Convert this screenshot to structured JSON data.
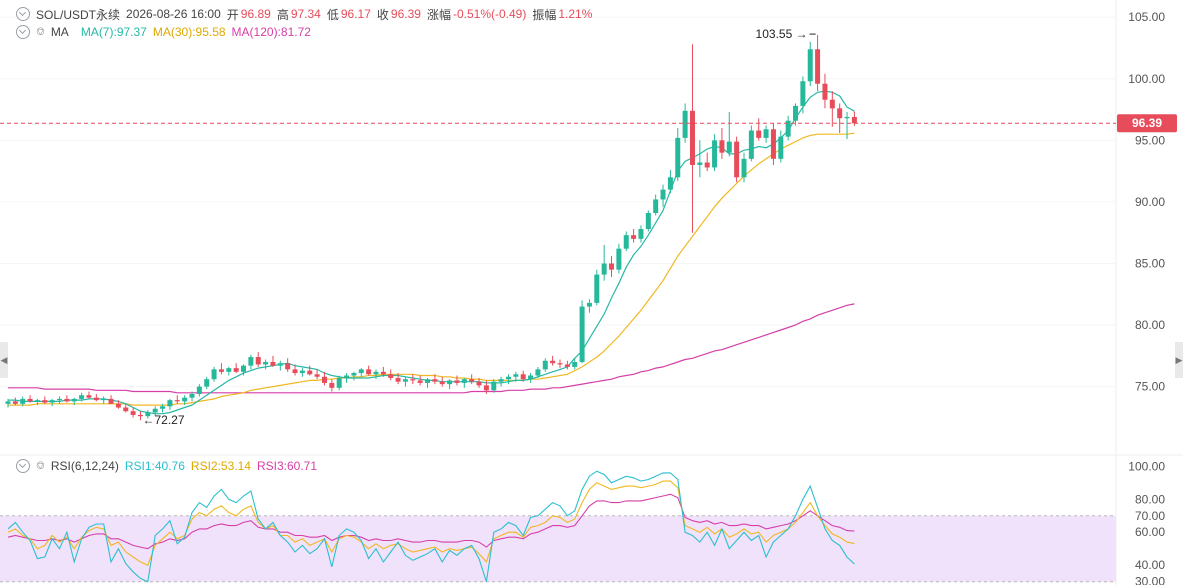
{
  "header": {
    "symbol": "SOL/USDT永续",
    "datetime": "2026-08-26 16:00",
    "open_label": "开",
    "open": "96.89",
    "high_label": "高",
    "high": "97.34",
    "low_label": "低",
    "low": "96.17",
    "close_label": "收",
    "close": "96.39",
    "change_label": "涨幅",
    "change": "-0.51%(-0.49)",
    "amp_label": "振幅",
    "amp": "1.21%"
  },
  "ma_legend": {
    "name": "MA",
    "ma7": "MA(7):97.37",
    "ma30": "MA(30):95.58",
    "ma120": "MA(120):81.72"
  },
  "rsi_legend": {
    "name": "RSI(6,12,24)",
    "rsi1": "RSI1:40.76",
    "rsi2": "RSI2:53.14",
    "rsi3": "RSI3:60.71"
  },
  "colors": {
    "up": "#26b89a",
    "down": "#e74c5a",
    "ma7": "#26b8a6",
    "ma30": "#f0b820",
    "ma120": "#d63fa8",
    "rsi1": "#2bbfcf",
    "rsi2": "#f0b820",
    "rsi3": "#d63fa8",
    "rsi_band": "#f0e2fb",
    "price_tag": "#e74c5a"
  },
  "chart_data": {
    "type": "candlestick",
    "price_axis": {
      "ticks": [
        "105.00",
        "100.00",
        "95.00",
        "90.00",
        "85.00",
        "80.00",
        "75.00"
      ],
      "range": [
        71.8,
        106.4
      ]
    },
    "rsi_axis": {
      "ticks": [
        "100.00",
        "80.00",
        "70.00",
        "60.00",
        "40.00",
        "30.00"
      ],
      "range": [
        28,
        102
      ],
      "band": [
        30,
        70
      ]
    },
    "current_price": "96.39",
    "max_label": "103.55",
    "min_label": "72.27",
    "candles": [
      [
        73.6,
        74.0,
        73.3,
        73.8
      ],
      [
        73.8,
        74.1,
        73.5,
        73.6
      ],
      [
        73.6,
        74.2,
        73.4,
        74.0
      ],
      [
        74.0,
        74.3,
        73.7,
        73.8
      ],
      [
        73.8,
        74.0,
        73.5,
        73.9
      ],
      [
        73.9,
        74.2,
        73.6,
        73.7
      ],
      [
        73.7,
        74.0,
        73.4,
        73.9
      ],
      [
        73.9,
        74.2,
        73.6,
        74.0
      ],
      [
        74.0,
        74.3,
        73.7,
        73.8
      ],
      [
        73.8,
        74.1,
        73.5,
        74.0
      ],
      [
        74.0,
        74.5,
        73.8,
        74.3
      ],
      [
        74.3,
        74.6,
        74.0,
        74.1
      ],
      [
        74.1,
        74.4,
        73.8,
        73.9
      ],
      [
        73.9,
        74.2,
        73.6,
        74.0
      ],
      [
        74.0,
        74.3,
        73.7,
        73.6
      ],
      [
        73.6,
        73.9,
        73.2,
        73.3
      ],
      [
        73.3,
        73.6,
        72.9,
        73.0
      ],
      [
        73.0,
        73.3,
        72.5,
        72.7
      ],
      [
        72.7,
        73.0,
        72.27,
        72.6
      ],
      [
        72.6,
        73.1,
        72.4,
        72.9
      ],
      [
        72.9,
        73.4,
        72.6,
        73.2
      ],
      [
        73.2,
        73.6,
        72.9,
        73.4
      ],
      [
        73.4,
        74.0,
        73.1,
        73.9
      ],
      [
        73.9,
        74.3,
        73.6,
        73.8
      ],
      [
        73.8,
        74.3,
        73.5,
        74.1
      ],
      [
        74.1,
        74.6,
        73.8,
        74.4
      ],
      [
        74.4,
        75.2,
        74.2,
        75.0
      ],
      [
        75.0,
        75.8,
        74.8,
        75.6
      ],
      [
        75.6,
        76.6,
        75.4,
        76.4
      ],
      [
        76.4,
        76.9,
        76.0,
        76.2
      ],
      [
        76.2,
        76.6,
        75.9,
        76.5
      ],
      [
        76.5,
        76.9,
        76.1,
        76.2
      ],
      [
        76.2,
        76.8,
        75.9,
        76.7
      ],
      [
        76.7,
        77.6,
        76.4,
        77.4
      ],
      [
        77.4,
        77.8,
        76.6,
        76.8
      ],
      [
        76.8,
        77.2,
        76.4,
        77.0
      ],
      [
        77.0,
        77.5,
        76.6,
        76.7
      ],
      [
        76.7,
        77.1,
        76.3,
        76.9
      ],
      [
        76.9,
        77.3,
        76.2,
        76.4
      ],
      [
        76.4,
        76.8,
        75.9,
        76.1
      ],
      [
        76.1,
        76.5,
        75.8,
        76.3
      ],
      [
        76.3,
        76.7,
        75.9,
        76.0
      ],
      [
        76.0,
        76.4,
        75.6,
        75.8
      ],
      [
        75.8,
        76.2,
        75.1,
        75.3
      ],
      [
        75.3,
        75.6,
        74.6,
        74.9
      ],
      [
        74.9,
        75.9,
        74.7,
        75.7
      ],
      [
        75.7,
        76.1,
        75.3,
        75.9
      ],
      [
        75.9,
        76.2,
        75.5,
        76.1
      ],
      [
        76.1,
        76.5,
        75.8,
        76.4
      ],
      [
        76.4,
        76.7,
        75.9,
        76.0
      ],
      [
        76.0,
        76.4,
        75.6,
        76.2
      ],
      [
        76.2,
        76.6,
        75.8,
        76.0
      ],
      [
        76.0,
        76.4,
        75.5,
        75.7
      ],
      [
        75.7,
        76.1,
        75.2,
        75.4
      ],
      [
        75.4,
        75.8,
        75.0,
        75.6
      ],
      [
        75.6,
        76.0,
        75.2,
        75.5
      ],
      [
        75.5,
        75.9,
        75.1,
        75.3
      ],
      [
        75.3,
        75.7,
        74.9,
        75.6
      ],
      [
        75.6,
        76.0,
        75.2,
        75.4
      ],
      [
        75.4,
        75.8,
        75.0,
        75.2
      ],
      [
        75.2,
        75.6,
        74.8,
        75.5
      ],
      [
        75.5,
        75.9,
        75.1,
        75.3
      ],
      [
        75.3,
        75.7,
        74.9,
        75.6
      ],
      [
        75.6,
        76.0,
        75.2,
        75.4
      ],
      [
        75.4,
        75.7,
        74.9,
        75.1
      ],
      [
        75.1,
        75.5,
        74.4,
        74.7
      ],
      [
        74.7,
        75.6,
        74.5,
        75.4
      ],
      [
        75.4,
        75.8,
        75.0,
        75.6
      ],
      [
        75.6,
        76.0,
        75.2,
        75.8
      ],
      [
        75.8,
        76.2,
        75.4,
        76.0
      ],
      [
        76.0,
        76.3,
        75.4,
        75.6
      ],
      [
        75.6,
        76.1,
        75.3,
        75.9
      ],
      [
        75.9,
        76.6,
        75.7,
        76.4
      ],
      [
        76.4,
        77.3,
        76.2,
        77.1
      ],
      [
        77.1,
        77.5,
        76.7,
        76.9
      ],
      [
        76.9,
        77.2,
        76.5,
        76.8
      ],
      [
        76.8,
        77.1,
        76.4,
        76.6
      ],
      [
        76.6,
        77.3,
        76.4,
        77.0
      ],
      [
        77.0,
        82.0,
        76.9,
        81.5
      ],
      [
        81.5,
        82.1,
        81.0,
        81.8
      ],
      [
        81.8,
        84.5,
        81.6,
        84.1
      ],
      [
        84.1,
        86.5,
        83.6,
        85.0
      ],
      [
        85.0,
        85.6,
        83.9,
        84.5
      ],
      [
        84.5,
        86.6,
        84.2,
        86.2
      ],
      [
        86.2,
        87.6,
        86.0,
        87.3
      ],
      [
        87.3,
        87.8,
        86.7,
        87.0
      ],
      [
        87.0,
        88.1,
        86.7,
        87.8
      ],
      [
        87.8,
        89.3,
        87.6,
        89.1
      ],
      [
        89.1,
        90.6,
        88.9,
        90.2
      ],
      [
        90.2,
        91.4,
        89.6,
        91.0
      ],
      [
        91.0,
        92.6,
        90.7,
        92.0
      ],
      [
        92.0,
        96.0,
        91.7,
        95.2
      ],
      [
        95.2,
        98.0,
        94.8,
        97.4
      ],
      [
        97.4,
        102.8,
        87.5,
        93.0
      ],
      [
        93.0,
        95.0,
        92.0,
        93.2
      ],
      [
        93.2,
        94.0,
        92.5,
        92.8
      ],
      [
        92.8,
        95.5,
        92.5,
        95.0
      ],
      [
        95.0,
        96.0,
        93.5,
        94.0
      ],
      [
        94.0,
        97.3,
        93.7,
        94.9
      ],
      [
        94.9,
        95.3,
        91.6,
        92.0
      ],
      [
        92.0,
        94.0,
        91.6,
        93.5
      ],
      [
        93.5,
        96.2,
        93.3,
        95.8
      ],
      [
        95.8,
        96.8,
        95.0,
        95.2
      ],
      [
        95.2,
        96.2,
        94.8,
        95.9
      ],
      [
        95.9,
        96.4,
        93.0,
        93.5
      ],
      [
        93.5,
        95.8,
        93.2,
        95.3
      ],
      [
        95.3,
        97.0,
        95.0,
        96.6
      ],
      [
        96.6,
        98.0,
        96.2,
        97.8
      ],
      [
        97.8,
        100.2,
        97.2,
        99.8
      ],
      [
        99.8,
        103.0,
        99.4,
        102.4
      ],
      [
        102.4,
        103.55,
        99.0,
        99.6
      ],
      [
        99.6,
        100.4,
        97.6,
        98.3
      ],
      [
        98.3,
        99.0,
        96.1,
        97.6
      ],
      [
        97.6,
        98.0,
        95.6,
        96.8
      ],
      [
        96.8,
        97.3,
        95.1,
        96.9
      ],
      [
        96.9,
        97.34,
        96.17,
        96.39
      ]
    ],
    "ma7": [
      73.9,
      73.9,
      73.8,
      73.8,
      73.8,
      73.8,
      73.8,
      73.8,
      73.9,
      73.9,
      73.9,
      74.0,
      74.0,
      74.0,
      73.9,
      73.8,
      73.6,
      73.3,
      73.0,
      72.9,
      72.8,
      72.8,
      72.9,
      73.1,
      73.3,
      73.5,
      73.9,
      74.3,
      74.7,
      75.1,
      75.5,
      75.8,
      76.1,
      76.3,
      76.5,
      76.6,
      76.7,
      76.8,
      76.9,
      76.7,
      76.6,
      76.5,
      76.4,
      76.1,
      75.9,
      75.8,
      75.7,
      75.7,
      75.7,
      75.7,
      75.8,
      75.9,
      75.9,
      75.9,
      75.8,
      75.7,
      75.6,
      75.5,
      75.5,
      75.4,
      75.4,
      75.4,
      75.4,
      75.4,
      75.4,
      75.3,
      75.3,
      75.3,
      75.4,
      75.5,
      75.5,
      75.6,
      75.8,
      76.0,
      76.2,
      76.4,
      76.6,
      77.3,
      77.9,
      78.9,
      79.9,
      80.9,
      82.2,
      83.4,
      84.7,
      85.7,
      86.4,
      87.3,
      88.3,
      89.3,
      90.9,
      92.5,
      93.3,
      93.6,
      93.9,
      94.3,
      94.5,
      94.4,
      93.9,
      93.9,
      94.2,
      94.3,
      94.5,
      94.4,
      94.7,
      95.2,
      95.8,
      96.8,
      97.7,
      98.5,
      98.9,
      99.0,
      98.9,
      98.6,
      97.7,
      97.37
    ],
    "ma30": [
      73.5,
      73.5,
      73.5,
      73.5,
      73.6,
      73.6,
      73.6,
      73.6,
      73.6,
      73.6,
      73.6,
      73.6,
      73.6,
      73.6,
      73.6,
      73.6,
      73.6,
      73.5,
      73.5,
      73.5,
      73.5,
      73.5,
      73.5,
      73.6,
      73.6,
      73.7,
      73.8,
      73.9,
      74.0,
      74.2,
      74.3,
      74.4,
      74.5,
      74.7,
      74.8,
      74.9,
      75.0,
      75.1,
      75.2,
      75.3,
      75.4,
      75.5,
      75.5,
      75.6,
      75.6,
      75.7,
      75.7,
      75.8,
      75.8,
      75.9,
      75.9,
      76.0,
      76.0,
      76.0,
      76.0,
      76.0,
      75.9,
      75.9,
      75.9,
      75.8,
      75.8,
      75.7,
      75.7,
      75.6,
      75.6,
      75.5,
      75.5,
      75.5,
      75.5,
      75.5,
      75.5,
      75.6,
      75.6,
      75.7,
      75.8,
      75.9,
      76.0,
      76.3,
      76.6,
      77.0,
      77.4,
      77.9,
      78.5,
      79.1,
      79.8,
      80.5,
      81.2,
      82.0,
      82.8,
      83.6,
      84.6,
      85.6,
      86.4,
      87.2,
      88.0,
      88.8,
      89.6,
      90.3,
      90.9,
      91.5,
      92.1,
      92.6,
      93.1,
      93.5,
      93.9,
      94.3,
      94.6,
      94.9,
      95.2,
      95.4,
      95.5,
      95.5,
      95.5,
      95.5,
      95.5,
      95.58
    ],
    "ma120": [
      74.9,
      74.9,
      74.9,
      74.9,
      74.9,
      74.8,
      74.8,
      74.8,
      74.8,
      74.8,
      74.8,
      74.8,
      74.7,
      74.7,
      74.7,
      74.7,
      74.7,
      74.6,
      74.6,
      74.6,
      74.6,
      74.6,
      74.6,
      74.5,
      74.5,
      74.5,
      74.5,
      74.5,
      74.5,
      74.5,
      74.5,
      74.5,
      74.5,
      74.5,
      74.5,
      74.5,
      74.5,
      74.5,
      74.5,
      74.5,
      74.5,
      74.5,
      74.5,
      74.5,
      74.5,
      74.5,
      74.5,
      74.5,
      74.5,
      74.5,
      74.5,
      74.5,
      74.5,
      74.5,
      74.5,
      74.5,
      74.5,
      74.5,
      74.5,
      74.5,
      74.5,
      74.5,
      74.5,
      74.6,
      74.6,
      74.6,
      74.6,
      74.6,
      74.7,
      74.7,
      74.7,
      74.8,
      74.8,
      74.8,
      74.9,
      74.9,
      75.0,
      75.1,
      75.2,
      75.3,
      75.4,
      75.5,
      75.6,
      75.8,
      75.9,
      76.0,
      76.2,
      76.3,
      76.5,
      76.6,
      76.8,
      77.0,
      77.2,
      77.3,
      77.5,
      77.7,
      77.9,
      78.0,
      78.2,
      78.4,
      78.6,
      78.8,
      79.0,
      79.2,
      79.4,
      79.6,
      79.8,
      80.0,
      80.3,
      80.5,
      80.8,
      81.0,
      81.2,
      81.4,
      81.6,
      81.72
    ],
    "rsi1": [
      62,
      66,
      60,
      55,
      44,
      45,
      56,
      50,
      60,
      42,
      56,
      63,
      65,
      65,
      42,
      50,
      41,
      36,
      32,
      30,
      58,
      62,
      67,
      53,
      57,
      72,
      78,
      75,
      82,
      86,
      80,
      78,
      82,
      85,
      68,
      62,
      66,
      58,
      54,
      48,
      52,
      47,
      50,
      56,
      39,
      58,
      62,
      60,
      55,
      44,
      50,
      42,
      48,
      54,
      46,
      43,
      45,
      47,
      50,
      42,
      49,
      46,
      50,
      52,
      44,
      30,
      60,
      62,
      66,
      64,
      58,
      69,
      70,
      74,
      78,
      76,
      70,
      73,
      86,
      94,
      97,
      95,
      90,
      92,
      94,
      93,
      91,
      92,
      94,
      96,
      96,
      92,
      60,
      58,
      54,
      60,
      52,
      62,
      50,
      55,
      60,
      55,
      58,
      45,
      54,
      58,
      62,
      70,
      80,
      88,
      75,
      62,
      55,
      52,
      45,
      40.76
    ],
    "rsi2": [
      60,
      62,
      58,
      56,
      50,
      52,
      58,
      54,
      57,
      50,
      57,
      61,
      63,
      62,
      52,
      54,
      48,
      45,
      42,
      40,
      52,
      56,
      60,
      56,
      58,
      68,
      72,
      70,
      74,
      76,
      72,
      70,
      74,
      76,
      66,
      62,
      64,
      58,
      58,
      54,
      56,
      52,
      54,
      56,
      48,
      56,
      58,
      57,
      54,
      50,
      53,
      50,
      52,
      53,
      50,
      48,
      49,
      50,
      51,
      48,
      50,
      49,
      50,
      51,
      47,
      42,
      56,
      58,
      60,
      60,
      57,
      63,
      64,
      66,
      70,
      69,
      66,
      68,
      78,
      86,
      90,
      88,
      86,
      87,
      88,
      88,
      87,
      88,
      89,
      91,
      91,
      87,
      64,
      62,
      60,
      63,
      59,
      62,
      57,
      59,
      62,
      59,
      60,
      54,
      58,
      60,
      62,
      66,
      72,
      78,
      70,
      64,
      59,
      57,
      54,
      53.14
    ],
    "rsi3": [
      57,
      58,
      57,
      56,
      55,
      55,
      56,
      55,
      56,
      54,
      56,
      58,
      59,
      59,
      56,
      56,
      54,
      52,
      51,
      50,
      53,
      54,
      56,
      55,
      56,
      60,
      62,
      62,
      64,
      65,
      64,
      64,
      66,
      67,
      63,
      62,
      62,
      60,
      60,
      58,
      58,
      57,
      57,
      58,
      55,
      57,
      58,
      58,
      57,
      55,
      56,
      55,
      55,
      56,
      55,
      54,
      54,
      55,
      55,
      54,
      54,
      54,
      55,
      55,
      54,
      51,
      55,
      56,
      57,
      57,
      56,
      59,
      60,
      62,
      64,
      64,
      63,
      64,
      70,
      76,
      79,
      79,
      78,
      78,
      79,
      79,
      79,
      80,
      81,
      82,
      83,
      81,
      69,
      67,
      66,
      67,
      65,
      66,
      64,
      64,
      65,
      64,
      64,
      62,
      63,
      64,
      65,
      67,
      70,
      73,
      70,
      67,
      64,
      63,
      61,
      60.71
    ]
  }
}
